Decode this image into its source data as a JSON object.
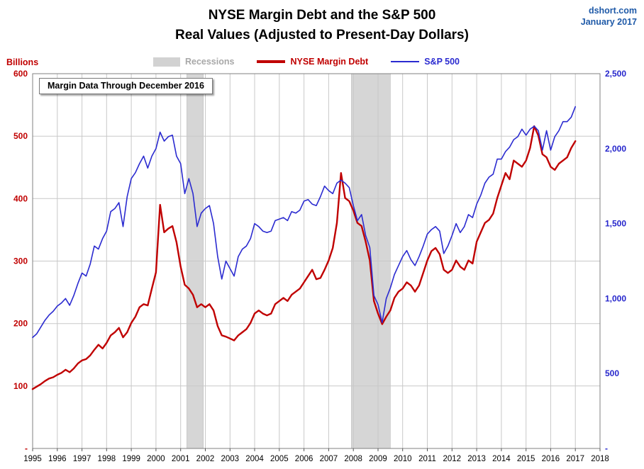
{
  "header": {
    "title_line1": "NYSE Margin Debt and the S&P 500",
    "title_line2": "Real Values (Adjusted to Present-Day Dollars)",
    "watermark_line1": "dshort.com",
    "watermark_line2": "January 2017"
  },
  "annotation": "Margin Data Through December 2016",
  "axis": {
    "left_label": "Billions",
    "left_color": "#c00000",
    "right_color": "#2626cc",
    "x_color": "#000000",
    "left_ticks": [
      "600",
      "500",
      "400",
      "300",
      "200",
      "100",
      "-"
    ],
    "right_ticks": [
      "2,500",
      "2,000",
      "1,500",
      "1,000",
      "500",
      "-"
    ],
    "x_ticks": [
      "1995",
      "1996",
      "1997",
      "1998",
      "1999",
      "2000",
      "2001",
      "2002",
      "2003",
      "2004",
      "2005",
      "2006",
      "2007",
      "2008",
      "2009",
      "2010",
      "2011",
      "2012",
      "2013",
      "2014",
      "2015",
      "2016",
      "2017",
      "2018"
    ]
  },
  "legend": [
    {
      "label": "Recessions",
      "type": "band",
      "color": "#d2d2d2",
      "text_color": "#a8a8a8"
    },
    {
      "label": "NYSE Margin Debt",
      "type": "line",
      "color": "#c00000"
    },
    {
      "label": "S&P 500",
      "type": "line",
      "color": "#2b2bd0"
    }
  ],
  "chart_data": {
    "type": "line",
    "title": "NYSE Margin Debt and the S&P 500",
    "subtitle": "Real Values (Adjusted to Present-Day Dollars)",
    "xlim": [
      1995,
      2018
    ],
    "left_ylim": [
      0,
      600
    ],
    "right_ylim": [
      0,
      2500
    ],
    "left_axis_label": "Billions",
    "grid": true,
    "grid_color": "#c8c8c8",
    "recession_color": "#d6d6d6",
    "recessions": [
      [
        2001.25,
        2001.92
      ],
      [
        2007.92,
        2009.5
      ]
    ],
    "series": [
      {
        "name": "NYSE Margin Debt",
        "data_name": "margin-debt-series",
        "axis": "left",
        "color": "#c00000",
        "width": 2.4,
        "x_start": 1995.0,
        "x_step_months": 2,
        "values": [
          95,
          99,
          103,
          108,
          112,
          114,
          118,
          121,
          126,
          122,
          128,
          136,
          141,
          143,
          149,
          158,
          166,
          160,
          169,
          181,
          186,
          193,
          178,
          186,
          201,
          211,
          226,
          231,
          229,
          256,
          282,
          390,
          346,
          352,
          356,
          330,
          291,
          262,
          256,
          246,
          226,
          231,
          226,
          231,
          221,
          196,
          181,
          179,
          176,
          173,
          181,
          186,
          191,
          201,
          216,
          221,
          216,
          213,
          216,
          231,
          236,
          241,
          236,
          246,
          251,
          256,
          266,
          276,
          286,
          271,
          273,
          286,
          301,
          321,
          361,
          441,
          401,
          396,
          381,
          361,
          356,
          331,
          301,
          236,
          216,
          199,
          211,
          221,
          241,
          251,
          256,
          266,
          261,
          251,
          261,
          281,
          301,
          316,
          321,
          311,
          286,
          281,
          286,
          301,
          291,
          286,
          301,
          296,
          331,
          346,
          361,
          366,
          376,
          401,
          421,
          441,
          431,
          461,
          456,
          451,
          461,
          481,
          516,
          501,
          471,
          466,
          451,
          446,
          456,
          461,
          466,
          481,
          492
        ]
      },
      {
        "name": "S&P 500",
        "data_name": "sp500-series",
        "axis": "right",
        "color": "#2b2bd0",
        "width": 1.6,
        "x_start": 1995.0,
        "x_step_months": 2,
        "values": [
          740,
          765,
          810,
          855,
          890,
          915,
          950,
          970,
          1000,
          955,
          1020,
          1100,
          1170,
          1150,
          1230,
          1350,
          1330,
          1400,
          1450,
          1580,
          1600,
          1640,
          1480,
          1680,
          1800,
          1840,
          1900,
          1950,
          1870,
          1950,
          2000,
          2110,
          2050,
          2080,
          2090,
          1950,
          1900,
          1700,
          1800,
          1700,
          1480,
          1570,
          1600,
          1620,
          1500,
          1280,
          1130,
          1250,
          1200,
          1150,
          1280,
          1330,
          1350,
          1400,
          1500,
          1480,
          1450,
          1440,
          1450,
          1520,
          1530,
          1540,
          1520,
          1580,
          1570,
          1590,
          1650,
          1660,
          1630,
          1620,
          1680,
          1750,
          1720,
          1700,
          1770,
          1790,
          1770,
          1740,
          1620,
          1520,
          1560,
          1420,
          1340,
          1020,
          960,
          840,
          1000,
          1070,
          1160,
          1220,
          1280,
          1320,
          1260,
          1220,
          1280,
          1350,
          1430,
          1460,
          1480,
          1450,
          1300,
          1350,
          1420,
          1500,
          1440,
          1480,
          1560,
          1540,
          1630,
          1690,
          1770,
          1810,
          1830,
          1930,
          1930,
          1980,
          2010,
          2060,
          2080,
          2130,
          2090,
          2130,
          2150,
          2120,
          1990,
          2120,
          1990,
          2080,
          2120,
          2180,
          2180,
          2210,
          2280
        ]
      }
    ]
  }
}
